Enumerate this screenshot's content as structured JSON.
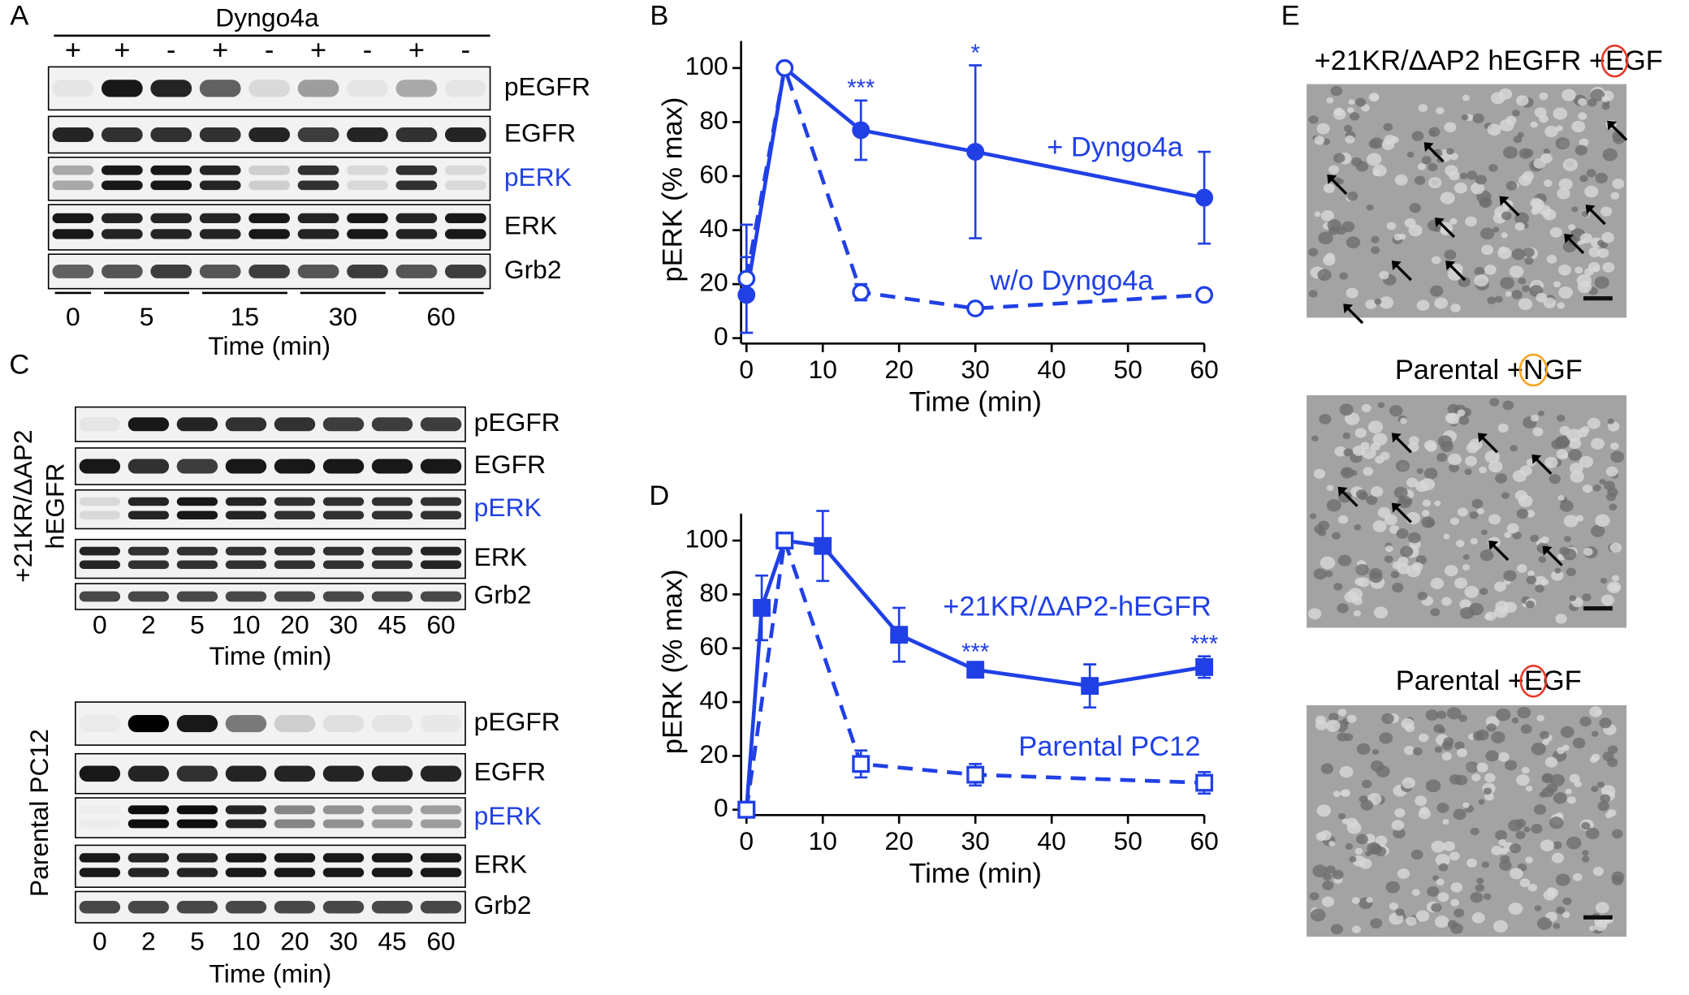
{
  "panel_labels": [
    "A",
    "B",
    "C",
    "D",
    "E"
  ],
  "panel_a": {
    "treatment": "Dyngo4a",
    "signs": [
      "+",
      "+",
      "-",
      "+",
      "-",
      "+",
      "-",
      "+",
      "-"
    ],
    "rows": [
      "pEGFR",
      "EGFR",
      "pERK",
      "ERK",
      "Grb2"
    ],
    "row_colors": [
      "#000000",
      "#000000",
      "#2040e6",
      "#000000",
      "#000000"
    ],
    "times": [
      0,
      5,
      15,
      30,
      60
    ],
    "xlabel": "Time (min)"
  },
  "panel_c": {
    "blots": [
      {
        "label": [
          "+21KR/ΔAP2",
          "hEGFR"
        ],
        "rows": [
          "pEGFR",
          "EGFR",
          "pERK",
          "ERK",
          "Grb2"
        ],
        "times": [
          0,
          2,
          5,
          10,
          20,
          30,
          45,
          60
        ],
        "xlabel": "Time (min)"
      },
      {
        "label": [
          "Parental PC12"
        ],
        "rows": [
          "pEGFR",
          "EGFR",
          "pERK",
          "ERK",
          "Grb2"
        ],
        "times": [
          0,
          2,
          5,
          10,
          20,
          30,
          45,
          60
        ],
        "xlabel": "Time (min)"
      }
    ],
    "row_colors": [
      "#000000",
      "#000000",
      "#2040e6",
      "#000000",
      "#000000"
    ]
  },
  "chart_data": [
    {
      "type": "line",
      "xlabel": "Time (min)",
      "ylabel": "pERK (% max)",
      "xlim": [
        0,
        60
      ],
      "ylim": [
        0,
        110
      ],
      "xticks": [
        0,
        10,
        20,
        30,
        40,
        50,
        60
      ],
      "yticks": [
        0,
        20,
        40,
        60,
        80,
        100
      ],
      "series": [
        {
          "name": "+ Dyngo4a",
          "color": "#2040e6",
          "marker": "circle",
          "filled": true,
          "dashed": false,
          "x": [
            0,
            5,
            15,
            30,
            60
          ],
          "values": [
            16,
            100,
            77,
            69,
            52
          ],
          "errors": [
            14,
            1,
            11,
            32,
            17
          ]
        },
        {
          "name": "w/o Dyngo4a",
          "color": "#2040e6",
          "marker": "circle",
          "filled": false,
          "dashed": true,
          "x": [
            0,
            5,
            15,
            30,
            60
          ],
          "values": [
            22,
            100,
            17,
            11,
            16
          ],
          "errors": [
            20,
            1,
            3,
            1,
            1
          ]
        }
      ],
      "annotations": [
        {
          "text": "***",
          "series": 0,
          "index": 2
        },
        {
          "text": "*",
          "series": 0,
          "index": 3
        }
      ]
    },
    {
      "type": "line",
      "xlabel": "Time (min)",
      "ylabel": "pERK (% max)",
      "xlim": [
        0,
        60
      ],
      "ylim": [
        0,
        110
      ],
      "xticks": [
        0,
        10,
        20,
        30,
        40,
        50,
        60
      ],
      "yticks": [
        0,
        20,
        40,
        60,
        80,
        100
      ],
      "series": [
        {
          "name": "+21KR/ΔAP2-hEGFR",
          "color": "#2040e6",
          "marker": "square",
          "filled": true,
          "dashed": false,
          "x": [
            0,
            2,
            5,
            10,
            20,
            30,
            45,
            60
          ],
          "values": [
            0,
            75,
            100,
            98,
            65,
            52,
            46,
            53
          ],
          "errors": [
            1,
            12,
            1,
            13,
            10,
            2,
            8,
            4
          ]
        },
        {
          "name": "Parental PC12",
          "color": "#2040e6",
          "marker": "square",
          "filled": false,
          "dashed": true,
          "x": [
            0,
            5,
            15,
            30,
            60
          ],
          "values": [
            0,
            100,
            17,
            13,
            10
          ],
          "errors": [
            1,
            1,
            5,
            4,
            4
          ]
        }
      ],
      "annotations": [
        {
          "text": "***",
          "series": 0,
          "index": 5
        },
        {
          "text": "***",
          "series": 0,
          "index": 7
        }
      ]
    }
  ],
  "panel_e": {
    "images": [
      {
        "title": [
          "+21KR/ΔAP2 hEGFR +",
          "E",
          "GF"
        ],
        "circle_color": "#e8392b"
      },
      {
        "title": [
          "Parental +",
          "N",
          "GF"
        ],
        "circle_color": "#f5a623"
      },
      {
        "title": [
          "Parental +",
          "E",
          "GF"
        ],
        "circle_color": "#e8392b"
      }
    ]
  }
}
